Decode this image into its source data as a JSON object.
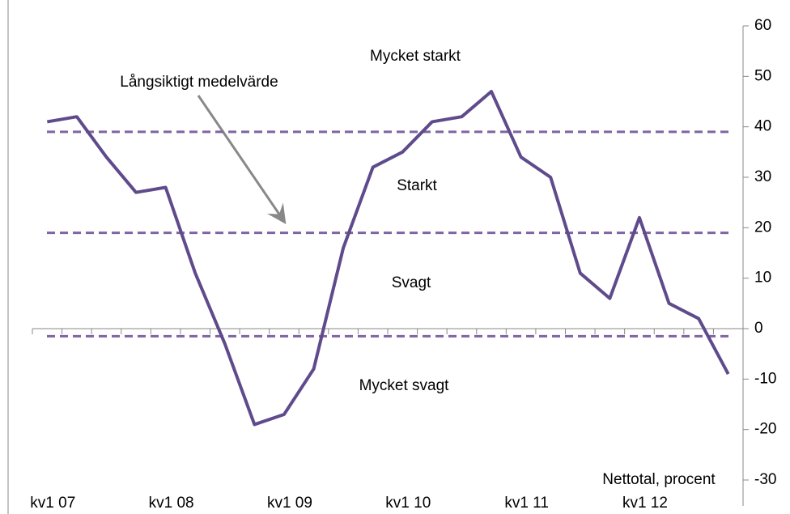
{
  "chart_data": {
    "type": "line",
    "categories": [
      "kv1 07",
      null,
      null,
      null,
      "kv1 08",
      null,
      null,
      null,
      "kv1 09",
      null,
      null,
      null,
      "kv1 10",
      null,
      null,
      null,
      "kv1 11",
      null,
      null,
      null,
      "kv1 12",
      null,
      null,
      null
    ],
    "series": [
      {
        "color": "#5f4b8b",
        "values": [
          41,
          42,
          34,
          27,
          28,
          11,
          -3,
          -19,
          -17,
          -8,
          16,
          32,
          35,
          41,
          42,
          47,
          34,
          30,
          11,
          6,
          22,
          5,
          2,
          -9
        ]
      }
    ],
    "reference_lines": {
      "color": "#8064a2",
      "values": [
        39,
        19,
        -1.5
      ]
    },
    "ylim": [
      -30,
      60
    ],
    "yticks": [
      -30,
      -20,
      -10,
      0,
      10,
      20,
      30,
      40,
      50,
      60
    ],
    "annotations": [
      "Mycket starkt",
      "Långsiktigt medelvärde",
      "Starkt",
      "Svagt",
      "Mycket svagt",
      "Nettotal, procent"
    ]
  }
}
